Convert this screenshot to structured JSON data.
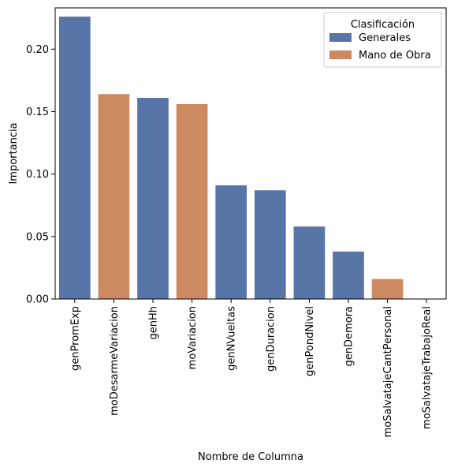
{
  "chart_data": {
    "type": "bar",
    "title": "",
    "xlabel": "Nombre de Columna",
    "ylabel": "Importancia",
    "ylim": [
      0,
      0.233
    ],
    "yticks": [
      "0.00",
      "0.05",
      "0.10",
      "0.15",
      "0.20"
    ],
    "grid": false,
    "legend": {
      "title": "Clasificación",
      "placement": "top-right",
      "entries": [
        {
          "name": "Generales",
          "color": "#5875a8"
        },
        {
          "name": "Mano de Obra",
          "color": "#cd8a61"
        }
      ]
    },
    "categories": [
      "genPromExp",
      "moDesarmeVariacion",
      "genHh",
      "moVariacion",
      "genNVueltas",
      "genDuracion",
      "genPondNivel",
      "genDemora",
      "moSalvatajeCantPersonal",
      "moSalvatajeTrabajoReal"
    ],
    "values": [
      0.226,
      0.164,
      0.161,
      0.156,
      0.091,
      0.087,
      0.058,
      0.038,
      0.016,
      0.0
    ],
    "groups": [
      "Generales",
      "Mano de Obra",
      "Generales",
      "Mano de Obra",
      "Generales",
      "Generales",
      "Generales",
      "Generales",
      "Mano de Obra",
      "Mano de Obra"
    ]
  }
}
